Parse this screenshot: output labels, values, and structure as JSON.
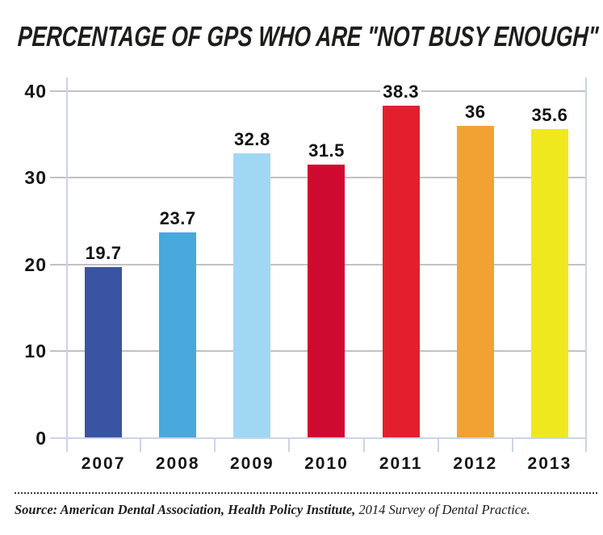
{
  "title": "PERCENTAGE OF GPS WHO ARE \"NOT BUSY ENOUGH\"",
  "chart_data": {
    "type": "bar",
    "title": "PERCENTAGE OF GPS WHO ARE \"NOT BUSY ENOUGH\"",
    "categories": [
      "2007",
      "2008",
      "2009",
      "2010",
      "2011",
      "2012",
      "2013"
    ],
    "values": [
      19.7,
      23.7,
      32.8,
      31.5,
      38.3,
      36,
      35.6
    ],
    "value_labels": [
      "19.7",
      "23.7",
      "32.8",
      "31.5",
      "38.3",
      "36",
      "35.6"
    ],
    "bar_colors": [
      "#3a54a3",
      "#49a8dc",
      "#a0d8f3",
      "#cf0a31",
      "#e31f2d",
      "#f2a233",
      "#f0e81f"
    ],
    "xlabel": "",
    "ylabel": "",
    "ylim": [
      0,
      40
    ],
    "yticks": [
      0,
      10,
      20,
      30,
      40
    ],
    "grid": true,
    "legend": false,
    "gridline_color": "#c2c2c5",
    "axis_color": "#c9d4e8"
  },
  "source_note": {
    "bold_part": "Source: American Dental Association, Health Policy Institute,",
    "regular_part": " 2014 Survey of Dental Practice."
  }
}
